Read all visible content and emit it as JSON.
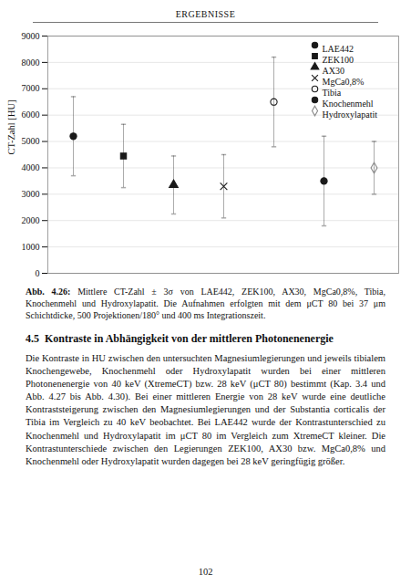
{
  "chart_data": {
    "type": "scatter",
    "header": "ERGEBNISSE",
    "ylabel": "CT-Zahl [HU]",
    "ylim": [
      0,
      9000
    ],
    "yticks": [
      0,
      1000,
      2000,
      3000,
      4000,
      5000,
      6000,
      7000,
      8000,
      9000
    ],
    "grid": true,
    "legend": "upper right",
    "tick_labels": "y",
    "series": [
      {
        "name": "LAE442",
        "values": [
          5200
        ],
        "yerr": [
          1500
        ],
        "marker": "circle",
        "color": "#1a1a1a"
      },
      {
        "name": "ZEK100",
        "values": [
          4450
        ],
        "yerr": [
          1200
        ],
        "marker": "square",
        "color": "#1a1a1a"
      },
      {
        "name": "AX30",
        "values": [
          3350
        ],
        "yerr": [
          1100
        ],
        "marker": "triangle",
        "color": "#1a1a1a"
      },
      {
        "name": "MgCa0,8%",
        "values": [
          3300
        ],
        "yerr": [
          1200
        ],
        "marker": "x",
        "color": "#1a1a1a"
      },
      {
        "name": "Tibia",
        "values": [
          6500
        ],
        "yerr": [
          1700
        ],
        "marker": "open_circle",
        "color": "#1a1a1a"
      },
      {
        "name": "Knochenmehl",
        "values": [
          3500
        ],
        "yerr": [
          1700
        ],
        "marker": "circle",
        "color": "#1a1a1a"
      },
      {
        "name": "Hydroxylapatit",
        "values": [
          4000
        ],
        "yerr": [
          1000
        ],
        "marker": "open_diamond",
        "color": "#888888"
      }
    ],
    "caption_label": "Abb. 4.26:",
    "caption": "Mittlere CT-Zahl ± 3σ von LAE442, ZEK100, AX30, MgCa0,8%, Tibia, Knochenmehl und Hydroxylapatit. Die Aufnahmen erfolgten mit dem μCT 80 bei 37 μm Schichtdicke, 500 Projektionen/180° und 400 ms Integrationszeit.",
    "section_number": "4.5",
    "section_title": "Kontraste in Abhängigkeit von der mittleren Photonenenergie",
    "body": "Die Kontraste in HU zwischen den untersuchten Magnesiumlegierungen und jeweils tibialem Knochengewebe, Knochenmehl oder Hydroxylapatit wurden bei einer mittleren Photonenenergie von 40 keV (XtremeCT) bzw. 28 keV (μCT 80) bestimmt (Kap. 3.4 und Abb. 4.27 bis Abb. 4.30). Bei einer mittleren Energie von 28 keV wurde eine deutliche Kontraststeigerung zwischen den Magnesiumlegierungen und der Substantia corticalis der Tibia im Vergleich zu 40 keV beobachtet. Bei LAE442 wurde der Kontrastunterschied zu Knochenmehl und Hydroxylapatit im μCT 80 im Vergleich zum XtremeCT kleiner. Die Kontrastunterschiede zwischen den Legierungen ZEK100, AX30 bzw. MgCa0,8% und Knochenmehl oder Hydroxylapatit wurden dagegen bei 28 keV geringfügig größer.",
    "page_number": "102"
  }
}
